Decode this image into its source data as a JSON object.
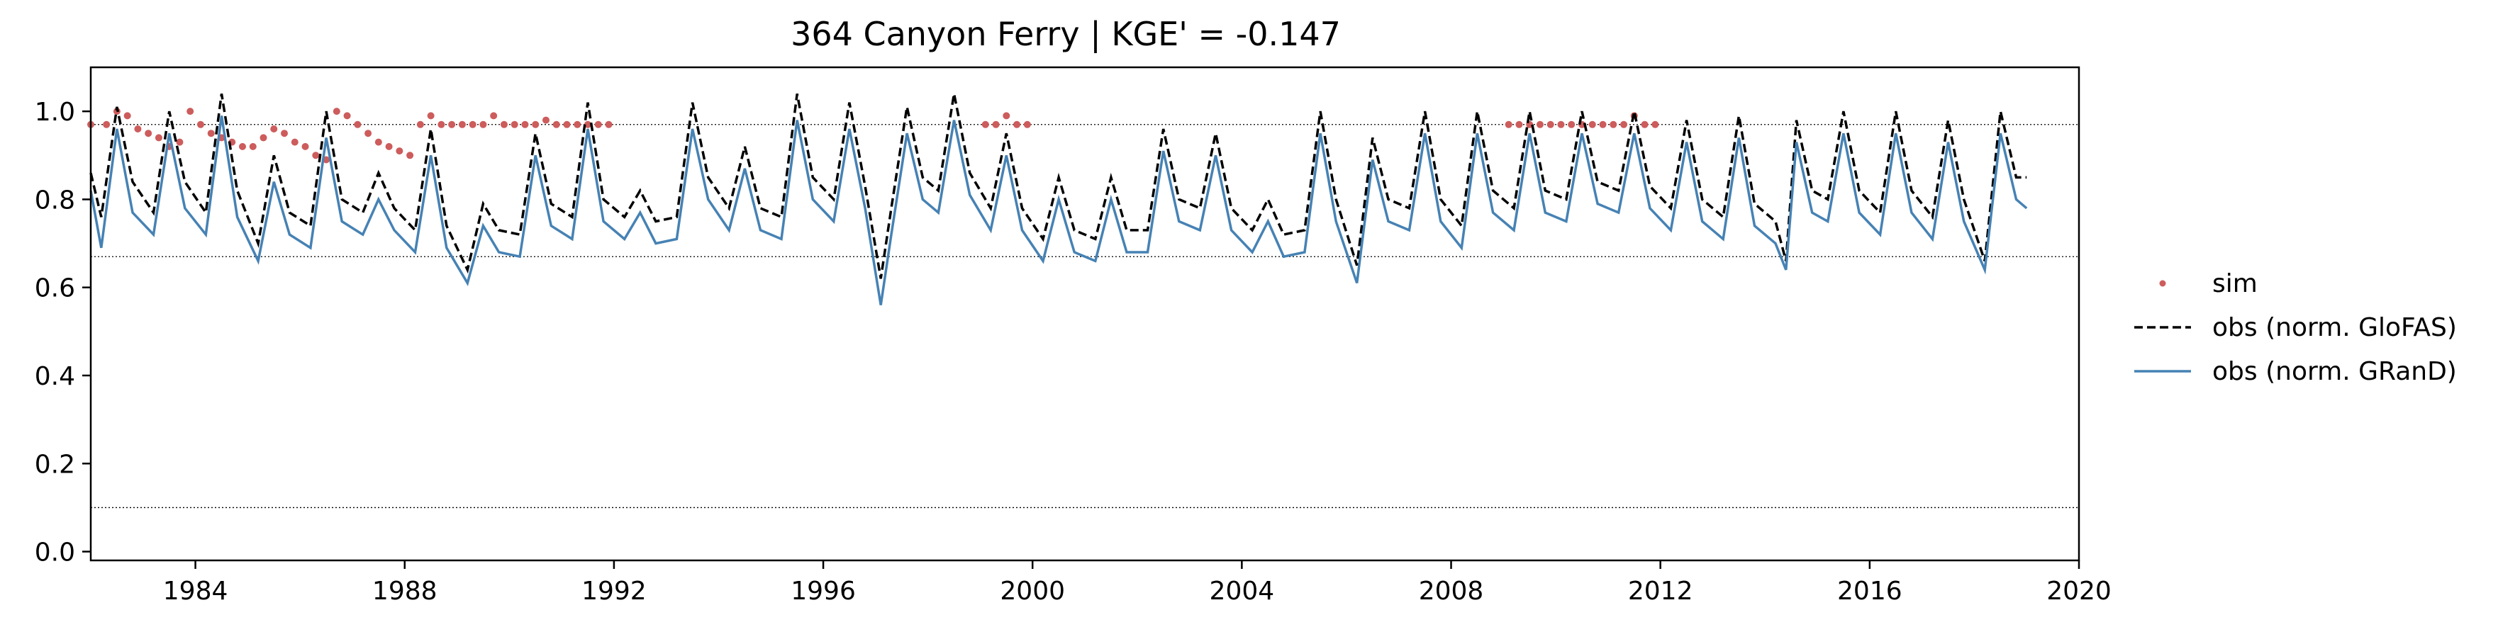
{
  "chart_data": {
    "type": "line",
    "title": "364  Canyon Ferry | KGE' = -0.147",
    "xlabel": "",
    "ylabel": "",
    "xlim": [
      1982.0,
      2020.0
    ],
    "ylim": [
      -0.02,
      1.1
    ],
    "x_ticks": [
      1984,
      1988,
      1992,
      1996,
      2000,
      2004,
      2008,
      2012,
      2016,
      2020
    ],
    "x_tick_labels": [
      "1984",
      "1988",
      "1992",
      "1996",
      "2000",
      "2004",
      "2008",
      "2012",
      "2016",
      "2020"
    ],
    "y_ticks": [
      0.0,
      0.2,
      0.4,
      0.6,
      0.8,
      1.0
    ],
    "y_tick_labels": [
      "0.0",
      "0.2",
      "0.4",
      "0.6",
      "0.8",
      "1.0"
    ],
    "grid": false,
    "reference_lines": [
      0.97,
      0.67,
      0.1
    ],
    "legend_position": "right, outside the plot",
    "series": [
      {
        "name": "sim",
        "style": "dots",
        "color": "#cd5c5c",
        "points": [
          [
            1982.0,
            0.97
          ],
          [
            1982.3,
            0.97
          ],
          [
            1982.5,
            1.0
          ],
          [
            1982.7,
            0.99
          ],
          [
            1982.9,
            0.96
          ],
          [
            1983.1,
            0.95
          ],
          [
            1983.3,
            0.94
          ],
          [
            1983.5,
            0.92
          ],
          [
            1983.7,
            0.93
          ],
          [
            1983.9,
            1.0
          ],
          [
            1984.1,
            0.97
          ],
          [
            1984.3,
            0.95
          ],
          [
            1984.5,
            0.94
          ],
          [
            1984.7,
            0.93
          ],
          [
            1984.9,
            0.92
          ],
          [
            1985.1,
            0.92
          ],
          [
            1985.3,
            0.94
          ],
          [
            1985.5,
            0.96
          ],
          [
            1985.7,
            0.95
          ],
          [
            1985.9,
            0.93
          ],
          [
            1986.1,
            0.92
          ],
          [
            1986.3,
            0.9
          ],
          [
            1986.5,
            0.89
          ],
          [
            1986.7,
            1.0
          ],
          [
            1986.9,
            0.99
          ],
          [
            1987.1,
            0.97
          ],
          [
            1987.3,
            0.95
          ],
          [
            1987.5,
            0.93
          ],
          [
            1987.7,
            0.92
          ],
          [
            1987.9,
            0.91
          ],
          [
            1988.1,
            0.9
          ],
          [
            1988.3,
            0.97
          ],
          [
            1988.5,
            0.99
          ],
          [
            1988.7,
            0.97
          ],
          [
            1988.9,
            0.97
          ],
          [
            1989.1,
            0.97
          ],
          [
            1989.3,
            0.97
          ],
          [
            1989.5,
            0.97
          ],
          [
            1989.7,
            0.99
          ],
          [
            1989.9,
            0.97
          ],
          [
            1990.1,
            0.97
          ],
          [
            1990.3,
            0.97
          ],
          [
            1990.5,
            0.97
          ],
          [
            1990.7,
            0.98
          ],
          [
            1990.9,
            0.97
          ],
          [
            1991.1,
            0.97
          ],
          [
            1991.3,
            0.97
          ],
          [
            1991.5,
            0.97
          ],
          [
            1991.7,
            0.97
          ],
          [
            1991.9,
            0.97
          ],
          [
            1999.1,
            0.97
          ],
          [
            1999.3,
            0.97
          ],
          [
            1999.5,
            0.99
          ],
          [
            1999.7,
            0.97
          ],
          [
            1999.9,
            0.97
          ],
          [
            2009.1,
            0.97
          ],
          [
            2009.3,
            0.97
          ],
          [
            2009.5,
            0.97
          ],
          [
            2009.7,
            0.97
          ],
          [
            2009.9,
            0.97
          ],
          [
            2010.1,
            0.97
          ],
          [
            2010.3,
            0.97
          ],
          [
            2010.5,
            0.97
          ],
          [
            2010.7,
            0.97
          ],
          [
            2010.9,
            0.97
          ],
          [
            2011.1,
            0.97
          ],
          [
            2011.3,
            0.97
          ],
          [
            2011.5,
            0.99
          ],
          [
            2011.7,
            0.97
          ],
          [
            2011.9,
            0.97
          ]
        ]
      },
      {
        "name": "obs (norm. GloFAS)",
        "style": "dashed",
        "color": "#000000",
        "points": [
          [
            1982.0,
            0.86
          ],
          [
            1982.2,
            0.76
          ],
          [
            1982.5,
            1.01
          ],
          [
            1982.8,
            0.84
          ],
          [
            1983.2,
            0.77
          ],
          [
            1983.5,
            1.0
          ],
          [
            1983.8,
            0.84
          ],
          [
            1984.2,
            0.77
          ],
          [
            1984.5,
            1.04
          ],
          [
            1984.8,
            0.82
          ],
          [
            1985.2,
            0.7
          ],
          [
            1985.5,
            0.9
          ],
          [
            1985.8,
            0.77
          ],
          [
            1986.2,
            0.74
          ],
          [
            1986.5,
            1.0
          ],
          [
            1986.8,
            0.8
          ],
          [
            1987.2,
            0.77
          ],
          [
            1987.5,
            0.86
          ],
          [
            1987.8,
            0.78
          ],
          [
            1988.2,
            0.73
          ],
          [
            1988.5,
            0.96
          ],
          [
            1988.8,
            0.74
          ],
          [
            1989.2,
            0.64
          ],
          [
            1989.5,
            0.79
          ],
          [
            1989.8,
            0.73
          ],
          [
            1990.2,
            0.72
          ],
          [
            1990.5,
            0.95
          ],
          [
            1990.8,
            0.79
          ],
          [
            1991.2,
            0.76
          ],
          [
            1991.5,
            1.02
          ],
          [
            1991.8,
            0.8
          ],
          [
            1992.2,
            0.76
          ],
          [
            1992.5,
            0.82
          ],
          [
            1992.8,
            0.75
          ],
          [
            1993.2,
            0.76
          ],
          [
            1993.5,
            1.02
          ],
          [
            1993.8,
            0.85
          ],
          [
            1994.2,
            0.78
          ],
          [
            1994.5,
            0.92
          ],
          [
            1994.8,
            0.78
          ],
          [
            1995.2,
            0.76
          ],
          [
            1995.5,
            1.04
          ],
          [
            1995.8,
            0.85
          ],
          [
            1996.2,
            0.8
          ],
          [
            1996.5,
            1.02
          ],
          [
            1996.8,
            0.83
          ],
          [
            1997.1,
            0.62
          ],
          [
            1997.3,
            0.78
          ],
          [
            1997.6,
            1.01
          ],
          [
            1997.9,
            0.85
          ],
          [
            1998.2,
            0.82
          ],
          [
            1998.5,
            1.04
          ],
          [
            1998.8,
            0.86
          ],
          [
            1999.2,
            0.78
          ],
          [
            1999.5,
            0.95
          ],
          [
            1999.8,
            0.78
          ],
          [
            2000.2,
            0.71
          ],
          [
            2000.5,
            0.85
          ],
          [
            2000.8,
            0.73
          ],
          [
            2001.2,
            0.71
          ],
          [
            2001.5,
            0.85
          ],
          [
            2001.8,
            0.73
          ],
          [
            2002.2,
            0.73
          ],
          [
            2002.5,
            0.96
          ],
          [
            2002.8,
            0.8
          ],
          [
            2003.2,
            0.78
          ],
          [
            2003.5,
            0.95
          ],
          [
            2003.8,
            0.78
          ],
          [
            2004.2,
            0.73
          ],
          [
            2004.5,
            0.8
          ],
          [
            2004.8,
            0.72
          ],
          [
            2005.2,
            0.73
          ],
          [
            2005.5,
            1.0
          ],
          [
            2005.8,
            0.8
          ],
          [
            2006.2,
            0.65
          ],
          [
            2006.5,
            0.94
          ],
          [
            2006.8,
            0.8
          ],
          [
            2007.2,
            0.78
          ],
          [
            2007.5,
            1.0
          ],
          [
            2007.8,
            0.8
          ],
          [
            2008.2,
            0.74
          ],
          [
            2008.5,
            1.0
          ],
          [
            2008.8,
            0.82
          ],
          [
            2009.2,
            0.78
          ],
          [
            2009.5,
            1.0
          ],
          [
            2009.8,
            0.82
          ],
          [
            2010.2,
            0.8
          ],
          [
            2010.5,
            1.0
          ],
          [
            2010.8,
            0.84
          ],
          [
            2011.2,
            0.82
          ],
          [
            2011.5,
            1.0
          ],
          [
            2011.8,
            0.83
          ],
          [
            2012.2,
            0.78
          ],
          [
            2012.5,
            0.98
          ],
          [
            2012.8,
            0.8
          ],
          [
            2013.2,
            0.76
          ],
          [
            2013.5,
            0.99
          ],
          [
            2013.8,
            0.79
          ],
          [
            2014.2,
            0.75
          ],
          [
            2014.4,
            0.66
          ],
          [
            2014.6,
            0.98
          ],
          [
            2014.9,
            0.82
          ],
          [
            2015.2,
            0.8
          ],
          [
            2015.5,
            1.0
          ],
          [
            2015.8,
            0.82
          ],
          [
            2016.2,
            0.77
          ],
          [
            2016.5,
            1.0
          ],
          [
            2016.8,
            0.82
          ],
          [
            2017.2,
            0.76
          ],
          [
            2017.5,
            0.98
          ],
          [
            2017.8,
            0.8
          ],
          [
            2018.2,
            0.66
          ],
          [
            2018.5,
            1.0
          ],
          [
            2018.8,
            0.85
          ],
          [
            2019.0,
            0.85
          ]
        ]
      },
      {
        "name": "obs (norm. GRanD)",
        "style": "solid",
        "color": "#4682b4",
        "points": [
          [
            1982.0,
            0.82
          ],
          [
            1982.2,
            0.69
          ],
          [
            1982.5,
            0.96
          ],
          [
            1982.8,
            0.77
          ],
          [
            1983.2,
            0.72
          ],
          [
            1983.5,
            0.95
          ],
          [
            1983.8,
            0.78
          ],
          [
            1984.2,
            0.72
          ],
          [
            1984.5,
            0.99
          ],
          [
            1984.8,
            0.76
          ],
          [
            1985.2,
            0.66
          ],
          [
            1985.5,
            0.84
          ],
          [
            1985.8,
            0.72
          ],
          [
            1986.2,
            0.69
          ],
          [
            1986.5,
            0.94
          ],
          [
            1986.8,
            0.75
          ],
          [
            1987.2,
            0.72
          ],
          [
            1987.5,
            0.8
          ],
          [
            1987.8,
            0.73
          ],
          [
            1988.2,
            0.68
          ],
          [
            1988.5,
            0.9
          ],
          [
            1988.8,
            0.69
          ],
          [
            1989.2,
            0.61
          ],
          [
            1989.5,
            0.74
          ],
          [
            1989.8,
            0.68
          ],
          [
            1990.2,
            0.67
          ],
          [
            1990.5,
            0.9
          ],
          [
            1990.8,
            0.74
          ],
          [
            1991.2,
            0.71
          ],
          [
            1991.5,
            0.96
          ],
          [
            1991.8,
            0.75
          ],
          [
            1992.2,
            0.71
          ],
          [
            1992.5,
            0.77
          ],
          [
            1992.8,
            0.7
          ],
          [
            1993.2,
            0.71
          ],
          [
            1993.5,
            0.96
          ],
          [
            1993.8,
            0.8
          ],
          [
            1994.2,
            0.73
          ],
          [
            1994.5,
            0.87
          ],
          [
            1994.8,
            0.73
          ],
          [
            1995.2,
            0.71
          ],
          [
            1995.5,
            0.98
          ],
          [
            1995.8,
            0.8
          ],
          [
            1996.2,
            0.75
          ],
          [
            1996.5,
            0.96
          ],
          [
            1996.8,
            0.78
          ],
          [
            1997.1,
            0.56
          ],
          [
            1997.3,
            0.72
          ],
          [
            1997.6,
            0.95
          ],
          [
            1997.9,
            0.8
          ],
          [
            1998.2,
            0.77
          ],
          [
            1998.5,
            0.98
          ],
          [
            1998.8,
            0.81
          ],
          [
            1999.2,
            0.73
          ],
          [
            1999.5,
            0.9
          ],
          [
            1999.8,
            0.73
          ],
          [
            2000.2,
            0.66
          ],
          [
            2000.5,
            0.8
          ],
          [
            2000.8,
            0.68
          ],
          [
            2001.2,
            0.66
          ],
          [
            2001.5,
            0.8
          ],
          [
            2001.8,
            0.68
          ],
          [
            2002.2,
            0.68
          ],
          [
            2002.5,
            0.91
          ],
          [
            2002.8,
            0.75
          ],
          [
            2003.2,
            0.73
          ],
          [
            2003.5,
            0.9
          ],
          [
            2003.8,
            0.73
          ],
          [
            2004.2,
            0.68
          ],
          [
            2004.5,
            0.75
          ],
          [
            2004.8,
            0.67
          ],
          [
            2005.2,
            0.68
          ],
          [
            2005.5,
            0.95
          ],
          [
            2005.8,
            0.75
          ],
          [
            2006.2,
            0.61
          ],
          [
            2006.5,
            0.89
          ],
          [
            2006.8,
            0.75
          ],
          [
            2007.2,
            0.73
          ],
          [
            2007.5,
            0.95
          ],
          [
            2007.8,
            0.75
          ],
          [
            2008.2,
            0.69
          ],
          [
            2008.5,
            0.95
          ],
          [
            2008.8,
            0.77
          ],
          [
            2009.2,
            0.73
          ],
          [
            2009.5,
            0.95
          ],
          [
            2009.8,
            0.77
          ],
          [
            2010.2,
            0.75
          ],
          [
            2010.5,
            0.95
          ],
          [
            2010.8,
            0.79
          ],
          [
            2011.2,
            0.77
          ],
          [
            2011.5,
            0.95
          ],
          [
            2011.8,
            0.78
          ],
          [
            2012.2,
            0.73
          ],
          [
            2012.5,
            0.93
          ],
          [
            2012.8,
            0.75
          ],
          [
            2013.2,
            0.71
          ],
          [
            2013.5,
            0.94
          ],
          [
            2013.8,
            0.74
          ],
          [
            2014.2,
            0.7
          ],
          [
            2014.4,
            0.64
          ],
          [
            2014.6,
            0.93
          ],
          [
            2014.9,
            0.77
          ],
          [
            2015.2,
            0.75
          ],
          [
            2015.5,
            0.95
          ],
          [
            2015.8,
            0.77
          ],
          [
            2016.2,
            0.72
          ],
          [
            2016.5,
            0.95
          ],
          [
            2016.8,
            0.77
          ],
          [
            2017.2,
            0.71
          ],
          [
            2017.5,
            0.93
          ],
          [
            2017.8,
            0.75
          ],
          [
            2018.2,
            0.64
          ],
          [
            2018.5,
            0.95
          ],
          [
            2018.8,
            0.8
          ],
          [
            2019.0,
            0.78
          ]
        ]
      }
    ]
  }
}
